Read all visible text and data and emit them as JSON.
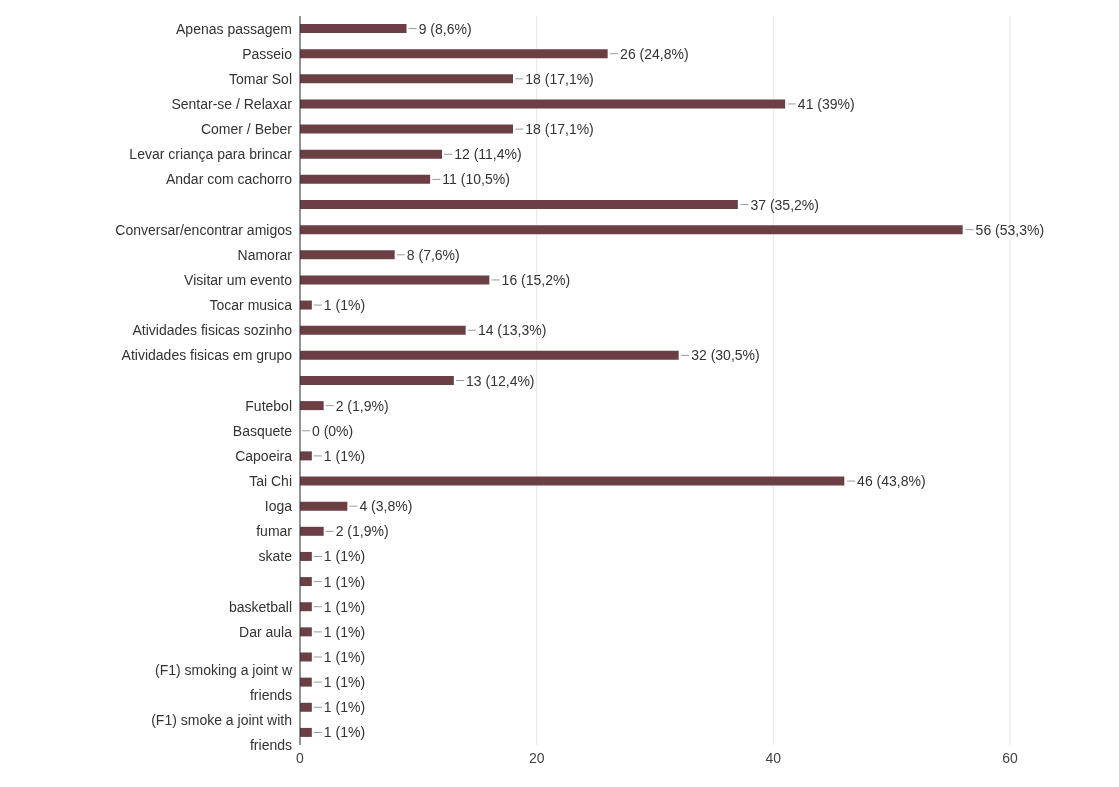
{
  "chart_data": {
    "type": "bar",
    "orientation": "horizontal",
    "categories": [
      "Apenas passagem",
      "Passeio",
      "Tomar Sol",
      "Sentar-se / Relaxar",
      "Comer / Beber",
      "Levar criança para brincar",
      "Andar com cachorro",
      null,
      "Conversar/encontrar amigos",
      "Namorar",
      "Visitar um evento",
      "Tocar musica",
      "Atividades fisicas sozinho",
      "Atividades fisicas em grupo",
      null,
      "Futebol",
      "Basquete",
      "Capoeira",
      "Tai Chi",
      "Ioga",
      "fumar",
      "skate",
      null,
      "basketball",
      "Dar aula",
      null,
      "(F1) smoking a joint w friends",
      null,
      "(F1) smoke a joint with friends"
    ],
    "values": [
      9,
      26,
      18,
      41,
      18,
      12,
      11,
      37,
      56,
      8,
      16,
      1,
      14,
      32,
      13,
      2,
      0,
      1,
      46,
      4,
      2,
      1,
      1,
      1,
      1,
      1,
      1,
      1,
      1
    ],
    "value_labels": [
      "9 (8,6%)",
      "26 (24,8%)",
      "18 (17,1%)",
      "41 (39%)",
      "18 (17,1%)",
      "12 (11,4%)",
      "11 (10,5%)",
      "37 (35,2%)",
      "56 (53,3%)",
      "8 (7,6%)",
      "16 (15,2%)",
      "1 (1%)",
      "14 (13,3%)",
      "32 (30,5%)",
      "13 (12,4%)",
      "2 (1,9%)",
      "0 (0%)",
      "1 (1%)",
      "46 (43,8%)",
      "4 (3,8%)",
      "2 (1,9%)",
      "1 (1%)",
      "1 (1%)",
      "1 (1%)",
      "1 (1%)",
      "1 (1%)",
      "1 (1%)",
      "1 (1%)",
      "1 (1%)"
    ],
    "color": "#6b3f43",
    "xlim": [
      0,
      60
    ],
    "xticks": [
      0,
      20,
      40,
      60
    ],
    "grid": "x",
    "legend": false
  }
}
